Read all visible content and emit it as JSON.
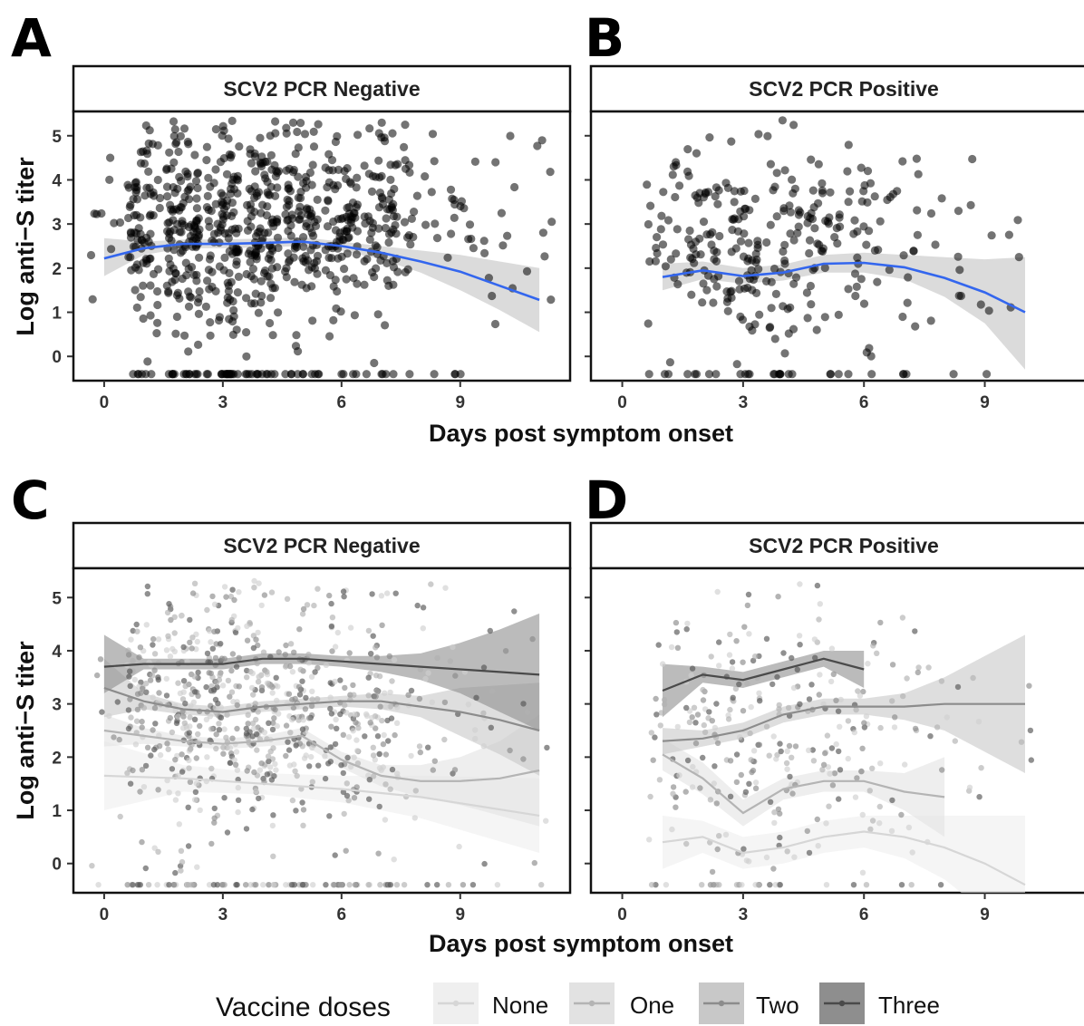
{
  "figure": {
    "x_axis_title": "Days post symptom onset",
    "y_axis_title": "Log anti−S titer"
  },
  "legend": {
    "title": "Vaccine doses",
    "items": [
      {
        "label": "None",
        "color": "#d6d6d6",
        "band": "#efefef"
      },
      {
        "label": "One",
        "color": "#b4b4b4",
        "band": "#e2e2e2"
      },
      {
        "label": "Two",
        "color": "#8c8c8c",
        "band": "#c8c8c8"
      },
      {
        "label": "Three",
        "color": "#4a4a4a",
        "band": "#8e8e8e"
      }
    ]
  },
  "chart_data": [
    {
      "panel": "A",
      "type": "scatter",
      "strip_title": "SCV2 PCR Negative",
      "xlim": [
        -0.8,
        11.8
      ],
      "ylim": [
        -0.55,
        5.55
      ],
      "xticks": [
        0,
        3,
        6,
        9
      ],
      "yticks": [
        0,
        1,
        2,
        3,
        4,
        5
      ],
      "point_color": "#000000",
      "point_opacity": 0.55,
      "floor_value": -0.4,
      "day_density": [
        [
          0,
          10
        ],
        [
          1,
          90
        ],
        [
          2,
          140
        ],
        [
          3,
          130
        ],
        [
          4,
          130
        ],
        [
          5,
          110
        ],
        [
          6,
          90
        ],
        [
          7,
          80
        ],
        [
          8,
          25
        ],
        [
          9,
          18
        ],
        [
          10,
          12
        ],
        [
          11,
          8
        ]
      ],
      "smooth": [
        {
          "name": "",
          "color": "#3366ee",
          "x": [
            0,
            1,
            2,
            3,
            4,
            5,
            6,
            7,
            8,
            9,
            10,
            11
          ],
          "y": [
            2.22,
            2.45,
            2.55,
            2.55,
            2.57,
            2.6,
            2.5,
            2.35,
            2.15,
            1.92,
            1.6,
            1.28
          ],
          "lower": [
            1.82,
            2.3,
            2.45,
            2.45,
            2.47,
            2.5,
            2.4,
            2.2,
            1.9,
            1.5,
            1.05,
            0.55
          ],
          "upper": [
            2.68,
            2.6,
            2.65,
            2.65,
            2.67,
            2.7,
            2.6,
            2.5,
            2.4,
            2.3,
            2.15,
            2.0
          ]
        }
      ]
    },
    {
      "panel": "B",
      "type": "scatter",
      "strip_title": "SCV2 PCR Positive",
      "xlim": [
        -0.8,
        11.8
      ],
      "ylim": [
        -0.55,
        5.55
      ],
      "xticks": [
        0,
        3,
        6,
        9
      ],
      "yticks": [
        0,
        1,
        2,
        3,
        4,
        5
      ],
      "point_color": "#000000",
      "point_opacity": 0.55,
      "floor_value": -0.4,
      "day_density": [
        [
          1,
          30
        ],
        [
          2,
          55
        ],
        [
          3,
          65
        ],
        [
          4,
          55
        ],
        [
          5,
          45
        ],
        [
          6,
          35
        ],
        [
          7,
          20
        ],
        [
          8,
          10
        ],
        [
          9,
          6
        ],
        [
          10,
          4
        ]
      ],
      "smooth": [
        {
          "name": "",
          "color": "#3366ee",
          "x": [
            1,
            2,
            3,
            4,
            5,
            6,
            7,
            8,
            9,
            10
          ],
          "y": [
            1.8,
            1.95,
            1.82,
            1.9,
            2.1,
            2.12,
            2.02,
            1.78,
            1.45,
            1.0
          ],
          "lower": [
            1.5,
            1.75,
            1.65,
            1.72,
            1.9,
            1.9,
            1.75,
            1.35,
            0.75,
            -0.3
          ],
          "upper": [
            2.1,
            2.15,
            2.0,
            2.08,
            2.3,
            2.35,
            2.3,
            2.25,
            2.2,
            2.25
          ]
        }
      ]
    },
    {
      "panel": "C",
      "type": "scatter",
      "strip_title": "SCV2 PCR Negative",
      "xlim": [
        -0.8,
        11.8
      ],
      "ylim": [
        -0.55,
        5.55
      ],
      "xticks": [
        0,
        3,
        6,
        9
      ],
      "yticks": [
        0,
        1,
        2,
        3,
        4,
        5
      ],
      "point_color": "#8a8a8a",
      "point_opacity": 0.65,
      "floor_value": -0.4,
      "day_density": [
        [
          0,
          10
        ],
        [
          1,
          90
        ],
        [
          2,
          140
        ],
        [
          3,
          130
        ],
        [
          4,
          130
        ],
        [
          5,
          110
        ],
        [
          6,
          90
        ],
        [
          7,
          80
        ],
        [
          8,
          25
        ],
        [
          9,
          18
        ],
        [
          10,
          12
        ],
        [
          11,
          8
        ]
      ],
      "smooth": [
        {
          "name": "None",
          "color": "#d6d6d6",
          "band": "#efefef",
          "x": [
            0,
            2,
            4,
            6,
            8,
            11
          ],
          "y": [
            1.65,
            1.6,
            1.5,
            1.4,
            1.25,
            0.9
          ],
          "lower": [
            1.0,
            1.35,
            1.3,
            1.15,
            0.85,
            0.2
          ],
          "upper": [
            2.3,
            1.85,
            1.7,
            1.65,
            1.65,
            1.6
          ]
        },
        {
          "name": "One",
          "color": "#b4b4b4",
          "band": "#e2e2e2",
          "x": [
            0,
            1,
            2,
            3,
            4,
            5,
            6,
            7,
            8,
            9,
            10,
            11
          ],
          "y": [
            2.5,
            2.4,
            2.3,
            2.25,
            2.3,
            2.4,
            1.95,
            1.65,
            1.55,
            1.55,
            1.6,
            1.75
          ],
          "lower": [
            2.2,
            2.25,
            2.2,
            2.15,
            2.2,
            2.25,
            1.8,
            1.45,
            1.25,
            1.1,
            0.9,
            0.7
          ],
          "upper": [
            2.8,
            2.55,
            2.4,
            2.35,
            2.4,
            2.55,
            2.1,
            1.85,
            1.85,
            2.0,
            2.3,
            2.8
          ]
        },
        {
          "name": "Two",
          "color": "#8c8c8c",
          "band": "#c8c8c8",
          "x": [
            0,
            1,
            2,
            3,
            4,
            5,
            6,
            7,
            8,
            9,
            10,
            11
          ],
          "y": [
            3.3,
            3.05,
            2.9,
            2.85,
            2.95,
            3.0,
            3.05,
            3.05,
            2.95,
            2.85,
            2.7,
            2.5
          ],
          "lower": [
            2.75,
            2.9,
            2.8,
            2.75,
            2.85,
            2.9,
            2.95,
            2.9,
            2.75,
            2.4,
            2.05,
            1.65
          ],
          "upper": [
            3.85,
            3.2,
            3.0,
            2.95,
            3.05,
            3.1,
            3.15,
            3.2,
            3.15,
            3.3,
            3.35,
            3.4
          ]
        },
        {
          "name": "Three",
          "color": "#4a4a4a",
          "band": "#8e8e8e",
          "x": [
            0,
            1,
            2,
            3,
            4,
            5,
            6,
            7,
            8,
            9,
            10,
            11
          ],
          "y": [
            3.7,
            3.75,
            3.75,
            3.75,
            3.85,
            3.85,
            3.8,
            3.75,
            3.7,
            3.65,
            3.6,
            3.55
          ],
          "lower": [
            3.2,
            3.65,
            3.65,
            3.65,
            3.75,
            3.75,
            3.7,
            3.6,
            3.45,
            3.2,
            2.85,
            2.5
          ],
          "upper": [
            4.3,
            3.85,
            3.85,
            3.85,
            3.95,
            3.95,
            3.9,
            3.9,
            3.95,
            4.15,
            4.4,
            4.7
          ]
        }
      ]
    },
    {
      "panel": "D",
      "type": "scatter",
      "strip_title": "SCV2 PCR Positive",
      "xlim": [
        -0.8,
        11.8
      ],
      "ylim": [
        -0.55,
        5.55
      ],
      "xticks": [
        0,
        3,
        6,
        9
      ],
      "yticks": [
        0,
        1,
        2,
        3,
        4,
        5
      ],
      "point_color": "#8a8a8a",
      "point_opacity": 0.65,
      "floor_value": -0.4,
      "day_density": [
        [
          1,
          30
        ],
        [
          2,
          55
        ],
        [
          3,
          65
        ],
        [
          4,
          55
        ],
        [
          5,
          45
        ],
        [
          6,
          35
        ],
        [
          7,
          20
        ],
        [
          8,
          10
        ],
        [
          9,
          6
        ],
        [
          10,
          4
        ]
      ],
      "smooth": [
        {
          "name": "None",
          "color": "#d6d6d6",
          "band": "#efefef",
          "x": [
            1,
            2,
            3,
            4,
            5,
            6,
            7,
            8,
            9,
            10
          ],
          "y": [
            0.4,
            0.5,
            0.2,
            0.3,
            0.5,
            0.6,
            0.5,
            0.3,
            0.0,
            -0.4
          ],
          "lower": [
            -0.1,
            0.2,
            -0.1,
            0.0,
            0.2,
            0.3,
            0.1,
            -0.3,
            -0.9,
            -1.5
          ],
          "upper": [
            0.9,
            0.8,
            0.5,
            0.6,
            0.8,
            0.9,
            0.9,
            0.9,
            0.9,
            0.9
          ]
        },
        {
          "name": "One",
          "color": "#b4b4b4",
          "band": "#e2e2e2",
          "x": [
            1,
            2,
            3,
            4,
            5,
            6,
            7,
            8
          ],
          "y": [
            2.05,
            1.6,
            0.95,
            1.4,
            1.55,
            1.55,
            1.35,
            1.25
          ],
          "lower": [
            1.75,
            1.3,
            0.7,
            1.2,
            1.35,
            1.35,
            1.0,
            0.5
          ],
          "upper": [
            2.35,
            1.9,
            1.2,
            1.6,
            1.75,
            1.75,
            1.7,
            2.0
          ]
        },
        {
          "name": "Two",
          "color": "#8c8c8c",
          "band": "#c8c8c8",
          "x": [
            1,
            2,
            3,
            4,
            5,
            6,
            7,
            8,
            9,
            10
          ],
          "y": [
            2.3,
            2.35,
            2.5,
            2.8,
            2.95,
            2.95,
            2.95,
            3.0,
            3.0,
            3.0
          ],
          "lower": [
            2.05,
            2.2,
            2.35,
            2.65,
            2.8,
            2.8,
            2.7,
            2.5,
            2.1,
            1.7
          ],
          "upper": [
            2.55,
            2.5,
            2.65,
            2.95,
            3.1,
            3.1,
            3.2,
            3.5,
            3.9,
            4.3
          ]
        },
        {
          "name": "Three",
          "color": "#4a4a4a",
          "band": "#8e8e8e",
          "x": [
            1,
            2,
            3,
            4,
            5,
            6
          ],
          "y": [
            3.25,
            3.55,
            3.45,
            3.65,
            3.85,
            3.65
          ],
          "lower": [
            2.75,
            3.4,
            3.3,
            3.5,
            3.7,
            3.3
          ],
          "upper": [
            3.75,
            3.7,
            3.6,
            3.8,
            4.0,
            4.0
          ]
        }
      ]
    }
  ]
}
